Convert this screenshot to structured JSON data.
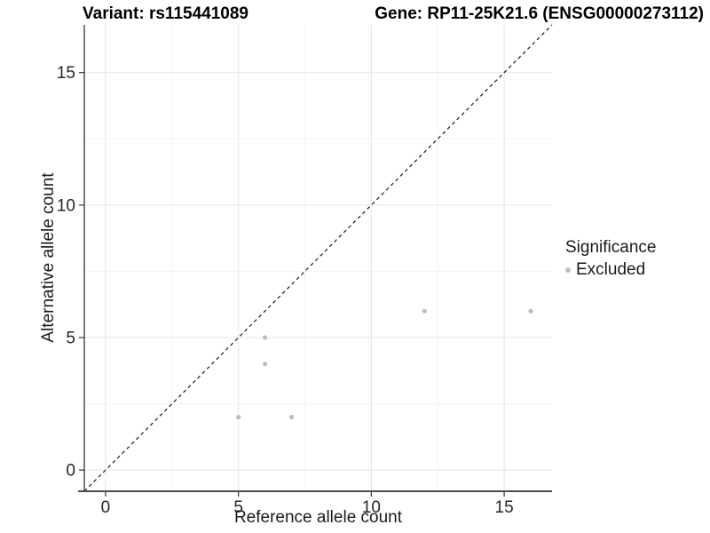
{
  "chart_data": {
    "type": "scatter",
    "title_left": "Variant: rs115441089",
    "title_right": "Gene: RP11-25K21.6 (ENSG00000273112)",
    "xlabel": "Reference allele count",
    "ylabel": "Alternative allele count",
    "xlim": [
      -0.8,
      16.8
    ],
    "ylim": [
      -0.8,
      16.8
    ],
    "x_major_ticks": [
      0,
      5,
      10,
      15
    ],
    "y_major_ticks": [
      0,
      5,
      10,
      15
    ],
    "x_minor_ticks": [
      2.5,
      7.5,
      12.5
    ],
    "y_minor_ticks": [
      2.5,
      7.5,
      12.5
    ],
    "grid": "major+minor",
    "reference_line": {
      "type": "identity",
      "slope": 1,
      "intercept": 0,
      "style": "dashed",
      "color": "#1a1a1a"
    },
    "series": [
      {
        "name": "Excluded",
        "color": "#bdbdbd",
        "marker": "circle",
        "marker_radius_px": 2.6,
        "points": [
          [
            5,
            2
          ],
          [
            6,
            4
          ],
          [
            6,
            5
          ],
          [
            7,
            2
          ],
          [
            12,
            6
          ],
          [
            16,
            6
          ]
        ]
      }
    ],
    "legend": {
      "title": "Significance",
      "position": "right",
      "entries": [
        {
          "label": "Excluded",
          "color": "#bdbdbd"
        }
      ]
    }
  },
  "colors": {
    "background": "#ffffff",
    "grid_major": "#e5e5e5",
    "grid_minor": "#f3f3f3",
    "axis_line_y": "#333333",
    "axis_line_x": "#4d4d4d",
    "tick_mark": "#333333",
    "tick_label": "#262626",
    "point": "#bdbdbd",
    "reference_line": "#1a1a1a"
  }
}
